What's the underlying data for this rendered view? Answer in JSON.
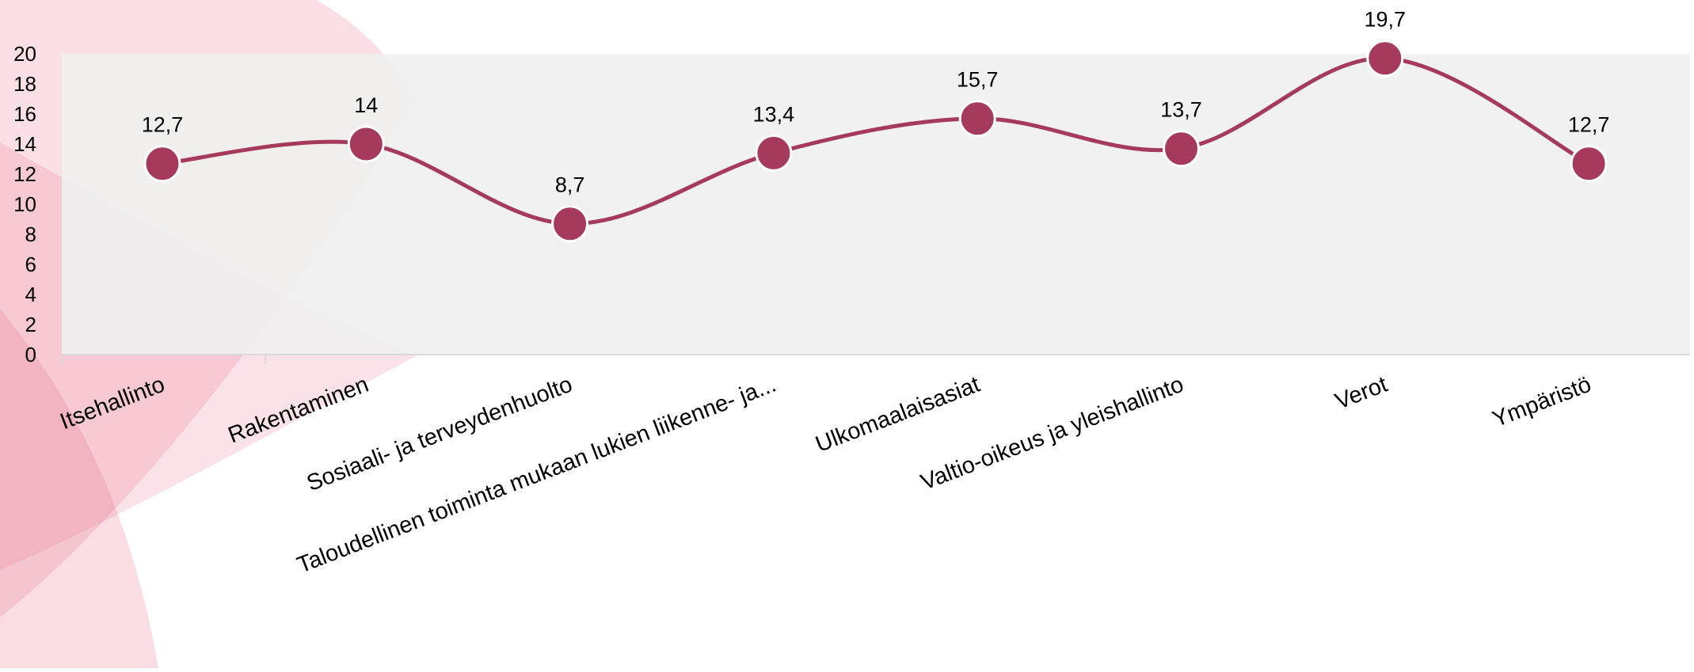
{
  "chart_data": {
    "type": "line",
    "title": "",
    "xlabel": "",
    "ylabel": "",
    "categories": [
      "Itsehallinto",
      "Rakentaminen",
      "Sosiaali- ja terveydenhuolto",
      "Taloudellinen toiminta mukaan lukien liikenne- ja...",
      "Ulkomaalaisasiat",
      "Valtio-oikeus ja yleishallinto",
      "Verot",
      "Ympäristö"
    ],
    "series": [
      {
        "values": [
          12.7,
          14,
          8.7,
          13.4,
          15.7,
          13.7,
          19.7,
          12.7
        ],
        "data_labels": [
          "12,7",
          "14",
          "8,7",
          "13,4",
          "15,7",
          "13,7",
          "19,7",
          "12,7"
        ]
      }
    ],
    "ylim": [
      0,
      20
    ],
    "yticks": [
      0,
      2,
      4,
      6,
      8,
      10,
      12,
      14,
      16,
      18,
      20
    ],
    "grid": false,
    "legend": "none",
    "smooth": true,
    "colors": {
      "line": "#a63a5c",
      "marker": "#a63a5c",
      "marker_stroke": "#ffffff",
      "plot_background": "#efefef",
      "decoration": "#e8708a"
    }
  }
}
